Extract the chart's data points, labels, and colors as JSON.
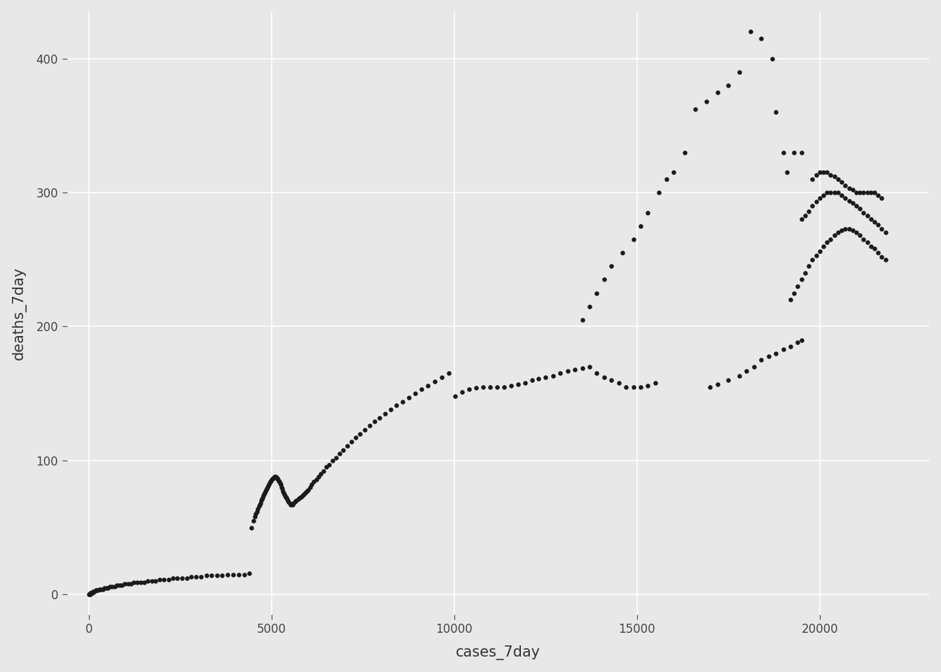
{
  "title": "",
  "xlabel": "cases_7day",
  "ylabel": "deaths_7day",
  "xlim": [
    -600,
    23000
  ],
  "ylim": [
    -15,
    435
  ],
  "xticks": [
    0,
    5000,
    10000,
    15000,
    20000
  ],
  "yticks": [
    0,
    100,
    200,
    300,
    400
  ],
  "background_color": "#E8E8E8",
  "grid_color": "#FFFFFF",
  "point_color": "#1A1A1A",
  "point_size": 22,
  "label_fontsize": 15,
  "tick_fontsize": 12,
  "points": [
    [
      5,
      0
    ],
    [
      10,
      0
    ],
    [
      15,
      0
    ],
    [
      20,
      0
    ],
    [
      30,
      0
    ],
    [
      40,
      1
    ],
    [
      55,
      1
    ],
    [
      70,
      1
    ],
    [
      90,
      1
    ],
    [
      110,
      2
    ],
    [
      135,
      2
    ],
    [
      160,
      2
    ],
    [
      190,
      3
    ],
    [
      220,
      3
    ],
    [
      255,
      3
    ],
    [
      290,
      4
    ],
    [
      330,
      4
    ],
    [
      375,
      4
    ],
    [
      420,
      5
    ],
    [
      470,
      5
    ],
    [
      525,
      5
    ],
    [
      580,
      6
    ],
    [
      640,
      6
    ],
    [
      700,
      6
    ],
    [
      765,
      7
    ],
    [
      835,
      7
    ],
    [
      910,
      7
    ],
    [
      985,
      8
    ],
    [
      1065,
      8
    ],
    [
      1150,
      8
    ],
    [
      1235,
      9
    ],
    [
      1325,
      9
    ],
    [
      1420,
      9
    ],
    [
      1515,
      9
    ],
    [
      1615,
      10
    ],
    [
      1720,
      10
    ],
    [
      1830,
      10
    ],
    [
      1940,
      11
    ],
    [
      2055,
      11
    ],
    [
      2175,
      11
    ],
    [
      2295,
      12
    ],
    [
      2420,
      12
    ],
    [
      2545,
      12
    ],
    [
      2675,
      12
    ],
    [
      2805,
      13
    ],
    [
      2940,
      13
    ],
    [
      3075,
      13
    ],
    [
      3215,
      14
    ],
    [
      3355,
      14
    ],
    [
      3500,
      14
    ],
    [
      3645,
      14
    ],
    [
      3795,
      15
    ],
    [
      3945,
      15
    ],
    [
      4095,
      15
    ],
    [
      4245,
      15
    ],
    [
      4390,
      16
    ],
    [
      4450,
      50
    ],
    [
      4500,
      55
    ],
    [
      4540,
      58
    ],
    [
      4570,
      60
    ],
    [
      4600,
      62
    ],
    [
      4625,
      64
    ],
    [
      4650,
      66
    ],
    [
      4670,
      67
    ],
    [
      4690,
      68
    ],
    [
      4710,
      70
    ],
    [
      4730,
      71
    ],
    [
      4750,
      72
    ],
    [
      4770,
      74
    ],
    [
      4790,
      75
    ],
    [
      4810,
      76
    ],
    [
      4830,
      77
    ],
    [
      4850,
      78
    ],
    [
      4870,
      79
    ],
    [
      4890,
      80
    ],
    [
      4910,
      81
    ],
    [
      4930,
      82
    ],
    [
      4950,
      83
    ],
    [
      4970,
      84
    ],
    [
      4990,
      85
    ],
    [
      5010,
      86
    ],
    [
      5030,
      87
    ],
    [
      5050,
      87
    ],
    [
      5070,
      88
    ],
    [
      5090,
      88
    ],
    [
      5110,
      88
    ],
    [
      5130,
      87
    ],
    [
      5150,
      87
    ],
    [
      5170,
      86
    ],
    [
      5190,
      85
    ],
    [
      5210,
      84
    ],
    [
      5230,
      83
    ],
    [
      5250,
      82
    ],
    [
      5270,
      80
    ],
    [
      5290,
      79
    ],
    [
      5310,
      77
    ],
    [
      5330,
      76
    ],
    [
      5350,
      75
    ],
    [
      5370,
      74
    ],
    [
      5390,
      73
    ],
    [
      5410,
      72
    ],
    [
      5430,
      71
    ],
    [
      5450,
      70
    ],
    [
      5470,
      69
    ],
    [
      5490,
      68
    ],
    [
      5510,
      67
    ],
    [
      5540,
      67
    ],
    [
      5570,
      67
    ],
    [
      5600,
      68
    ],
    [
      5640,
      69
    ],
    [
      5680,
      70
    ],
    [
      5720,
      71
    ],
    [
      5760,
      72
    ],
    [
      5800,
      73
    ],
    [
      5840,
      74
    ],
    [
      5880,
      75
    ],
    [
      5920,
      76
    ],
    [
      5960,
      77
    ],
    [
      6000,
      78
    ],
    [
      6050,
      80
    ],
    [
      6100,
      82
    ],
    [
      6160,
      84
    ],
    [
      6220,
      86
    ],
    [
      6280,
      88
    ],
    [
      6350,
      90
    ],
    [
      6420,
      92
    ],
    [
      6500,
      95
    ],
    [
      6580,
      97
    ],
    [
      6670,
      100
    ],
    [
      6760,
      102
    ],
    [
      6860,
      105
    ],
    [
      6960,
      108
    ],
    [
      7070,
      111
    ],
    [
      7180,
      114
    ],
    [
      7300,
      117
    ],
    [
      7420,
      120
    ],
    [
      7550,
      123
    ],
    [
      7680,
      126
    ],
    [
      7820,
      129
    ],
    [
      7960,
      132
    ],
    [
      8110,
      135
    ],
    [
      8260,
      138
    ],
    [
      8420,
      141
    ],
    [
      8580,
      144
    ],
    [
      8750,
      147
    ],
    [
      8920,
      150
    ],
    [
      9100,
      153
    ],
    [
      9280,
      156
    ],
    [
      9460,
      159
    ],
    [
      9650,
      162
    ],
    [
      9840,
      165
    ],
    [
      10030,
      148
    ],
    [
      10220,
      151
    ],
    [
      10410,
      153
    ],
    [
      10600,
      154
    ],
    [
      10790,
      155
    ],
    [
      10980,
      155
    ],
    [
      11170,
      155
    ],
    [
      11360,
      155
    ],
    [
      11550,
      156
    ],
    [
      11740,
      157
    ],
    [
      11930,
      158
    ],
    [
      12120,
      160
    ],
    [
      12310,
      161
    ],
    [
      12500,
      162
    ],
    [
      12700,
      163
    ],
    [
      12900,
      165
    ],
    [
      13100,
      167
    ],
    [
      13300,
      168
    ],
    [
      13500,
      169
    ],
    [
      13700,
      170
    ],
    [
      13900,
      165
    ],
    [
      14100,
      162
    ],
    [
      14300,
      160
    ],
    [
      14500,
      158
    ],
    [
      14700,
      155
    ],
    [
      14900,
      155
    ],
    [
      15100,
      155
    ],
    [
      15300,
      156
    ],
    [
      15500,
      158
    ],
    [
      13500,
      205
    ],
    [
      13700,
      215
    ],
    [
      13900,
      225
    ],
    [
      14100,
      235
    ],
    [
      14300,
      245
    ],
    [
      14600,
      255
    ],
    [
      14900,
      265
    ],
    [
      15100,
      275
    ],
    [
      15300,
      285
    ],
    [
      15600,
      300
    ],
    [
      15800,
      310
    ],
    [
      16000,
      315
    ],
    [
      16300,
      330
    ],
    [
      16600,
      362
    ],
    [
      16900,
      368
    ],
    [
      17200,
      375
    ],
    [
      17500,
      380
    ],
    [
      17800,
      390
    ],
    [
      18100,
      420
    ],
    [
      18400,
      415
    ],
    [
      18700,
      400
    ],
    [
      18800,
      360
    ],
    [
      19000,
      330
    ],
    [
      19100,
      315
    ],
    [
      19300,
      330
    ],
    [
      19500,
      330
    ],
    [
      17000,
      155
    ],
    [
      17200,
      157
    ],
    [
      17500,
      160
    ],
    [
      17800,
      163
    ],
    [
      18000,
      167
    ],
    [
      18200,
      170
    ],
    [
      18400,
      175
    ],
    [
      18600,
      178
    ],
    [
      18800,
      180
    ],
    [
      19000,
      183
    ],
    [
      19200,
      185
    ],
    [
      19400,
      188
    ],
    [
      19500,
      190
    ],
    [
      19200,
      220
    ],
    [
      19300,
      225
    ],
    [
      19400,
      230
    ],
    [
      19500,
      235
    ],
    [
      19600,
      240
    ],
    [
      19700,
      245
    ],
    [
      19800,
      250
    ],
    [
      19900,
      253
    ],
    [
      20000,
      256
    ],
    [
      20100,
      260
    ],
    [
      20200,
      263
    ],
    [
      20300,
      265
    ],
    [
      20400,
      268
    ],
    [
      20500,
      270
    ],
    [
      20600,
      272
    ],
    [
      20700,
      273
    ],
    [
      20800,
      273
    ],
    [
      20900,
      272
    ],
    [
      21000,
      270
    ],
    [
      21100,
      268
    ],
    [
      21200,
      265
    ],
    [
      21300,
      263
    ],
    [
      21400,
      260
    ],
    [
      21500,
      258
    ],
    [
      21600,
      255
    ],
    [
      21700,
      252
    ],
    [
      21800,
      250
    ],
    [
      19500,
      280
    ],
    [
      19600,
      283
    ],
    [
      19700,
      286
    ],
    [
      19800,
      290
    ],
    [
      19900,
      293
    ],
    [
      20000,
      296
    ],
    [
      20100,
      298
    ],
    [
      20200,
      300
    ],
    [
      20300,
      300
    ],
    [
      20400,
      300
    ],
    [
      20500,
      300
    ],
    [
      20600,
      298
    ],
    [
      20700,
      296
    ],
    [
      20800,
      294
    ],
    [
      20900,
      292
    ],
    [
      21000,
      290
    ],
    [
      21100,
      288
    ],
    [
      21200,
      285
    ],
    [
      21300,
      283
    ],
    [
      21400,
      280
    ],
    [
      21500,
      278
    ],
    [
      21600,
      276
    ],
    [
      21700,
      273
    ],
    [
      21800,
      270
    ],
    [
      19800,
      310
    ],
    [
      19900,
      313
    ],
    [
      20000,
      315
    ],
    [
      20100,
      315
    ],
    [
      20200,
      315
    ],
    [
      20300,
      313
    ],
    [
      20400,
      312
    ],
    [
      20500,
      310
    ],
    [
      20600,
      308
    ],
    [
      20700,
      305
    ],
    [
      20800,
      303
    ],
    [
      20900,
      302
    ],
    [
      21000,
      300
    ],
    [
      21100,
      300
    ],
    [
      21200,
      300
    ],
    [
      21300,
      300
    ],
    [
      21400,
      300
    ],
    [
      21500,
      300
    ],
    [
      21600,
      298
    ],
    [
      21700,
      296
    ]
  ]
}
